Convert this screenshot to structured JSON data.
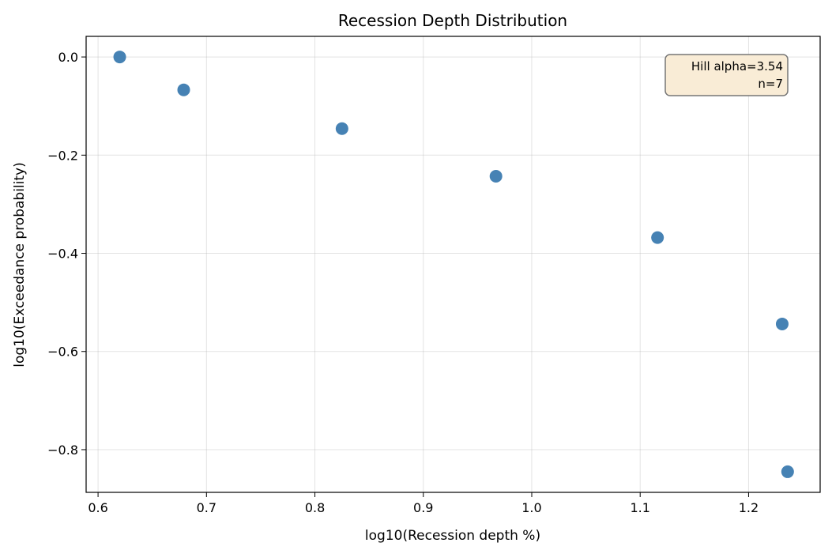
{
  "chart_data": {
    "type": "scatter",
    "title": "Recession Depth Distribution",
    "xlabel": "log10(Recession depth %)",
    "ylabel": "log10(Exceedance probability)",
    "xlim": [
      0.589,
      1.266
    ],
    "ylim": [
      -0.887,
      0.042
    ],
    "xticks": [
      0.6,
      0.7,
      0.8,
      0.9,
      1.0,
      1.1,
      1.2
    ],
    "xtick_labels": [
      "0.6",
      "0.7",
      "0.8",
      "0.9",
      "1.0",
      "1.1",
      "1.2"
    ],
    "yticks": [
      0.0,
      -0.2,
      -0.4,
      -0.6,
      -0.8
    ],
    "ytick_labels": [
      "0.0",
      "−0.2",
      "−0.4",
      "−0.6",
      "−0.8"
    ],
    "grid": true,
    "points": [
      {
        "x": 0.62,
        "y": 0.0
      },
      {
        "x": 0.679,
        "y": -0.067
      },
      {
        "x": 0.825,
        "y": -0.146
      },
      {
        "x": 0.967,
        "y": -0.243
      },
      {
        "x": 1.116,
        "y": -0.368
      },
      {
        "x": 1.231,
        "y": -0.544
      },
      {
        "x": 1.236,
        "y": -0.845
      }
    ],
    "marker_color": "#4682b4",
    "annotation": {
      "lines": [
        "Hill alpha=3.54",
        "n=7"
      ],
      "placement": "top-right",
      "box_color": "#f9ecd6"
    }
  }
}
